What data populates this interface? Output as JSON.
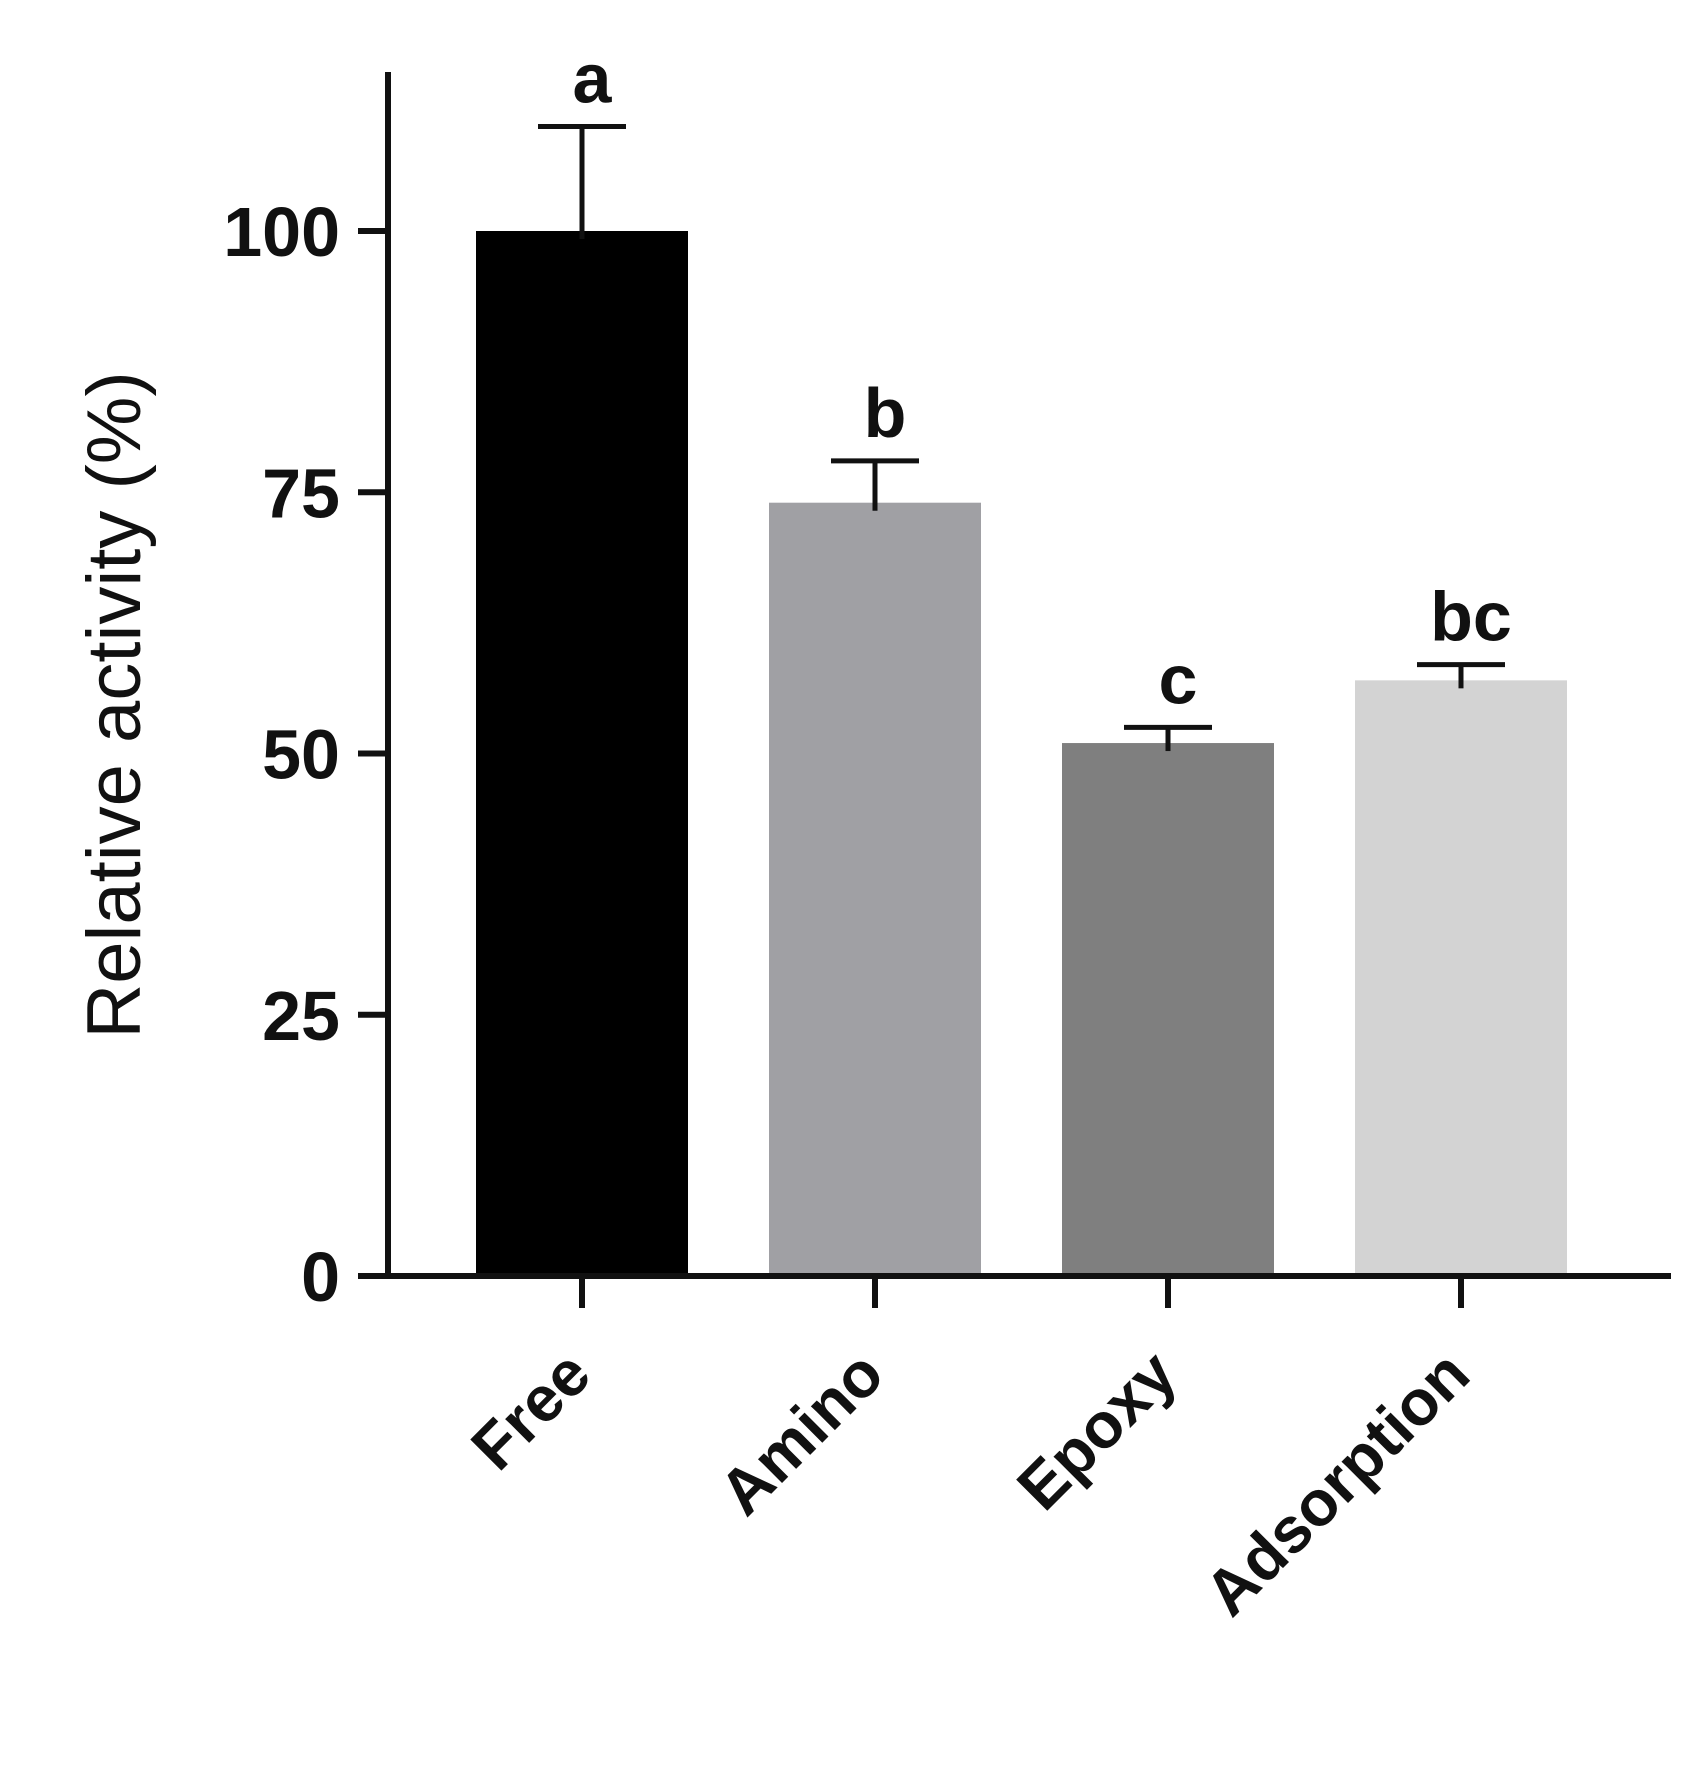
{
  "chart_data": {
    "type": "bar",
    "categories": [
      "Free",
      "Amino",
      "Epoxy",
      "Adsorption"
    ],
    "values": [
      100,
      74,
      51,
      57
    ],
    "error_upper": [
      10,
      4,
      1.5,
      1.5
    ],
    "significance_letters": [
      "a",
      "b",
      "c",
      "bc"
    ],
    "colors": [
      "#000000",
      "#a0a0a4",
      "#7f7f7f",
      "#d3d3d3"
    ],
    "title": "",
    "xlabel": "",
    "ylabel": "Relative activity (%)",
    "ylim": [
      0,
      125
    ],
    "yticks": [
      "0",
      "25",
      "50",
      "75",
      "100"
    ],
    "ytick_values": [
      0,
      25,
      50,
      75,
      100
    ],
    "grid": false,
    "legend": "none"
  }
}
